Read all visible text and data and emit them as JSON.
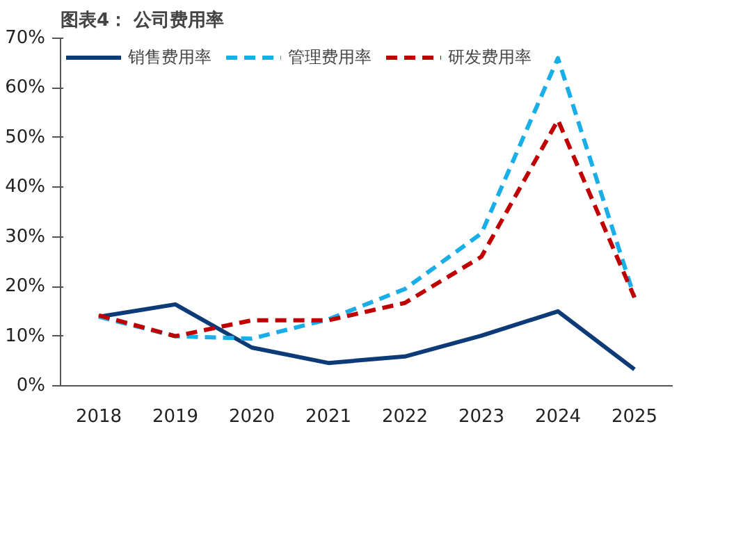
{
  "chart_data": {
    "type": "line",
    "title": "图表4：  公司费用率",
    "categories": [
      "2018",
      "2019",
      "2020",
      "2021",
      "2022",
      "2023",
      "2024",
      "2025"
    ],
    "series": [
      {
        "name": "销售费用率",
        "color": "#0d3b78",
        "line_style": "solid",
        "values": [
          13.9,
          16.4,
          7.7,
          4.6,
          5.9,
          10.1,
          15.0,
          3.3
        ]
      },
      {
        "name": "管理费用率",
        "color": "#1aaee8",
        "line_style": "dashed",
        "values": [
          13.9,
          10.0,
          9.5,
          13.4,
          19.5,
          30.7,
          66.0,
          17.8
        ]
      },
      {
        "name": "研发费用率",
        "color": "#c00000",
        "line_style": "dashed",
        "values": [
          14.2,
          10.0,
          13.2,
          13.2,
          16.7,
          26.0,
          53.5,
          17.8
        ]
      }
    ],
    "ylim": [
      0,
      70
    ],
    "yticks": [
      {
        "value": 0,
        "label": "0%"
      },
      {
        "value": 10,
        "label": "10%"
      },
      {
        "value": 20,
        "label": "20%"
      },
      {
        "value": 30,
        "label": "30%"
      },
      {
        "value": 40,
        "label": "40%"
      },
      {
        "value": 50,
        "label": "50%"
      },
      {
        "value": 60,
        "label": "60%"
      },
      {
        "value": 70,
        "label": "70%"
      }
    ],
    "grid": false,
    "legend": "top",
    "marker": "none"
  }
}
